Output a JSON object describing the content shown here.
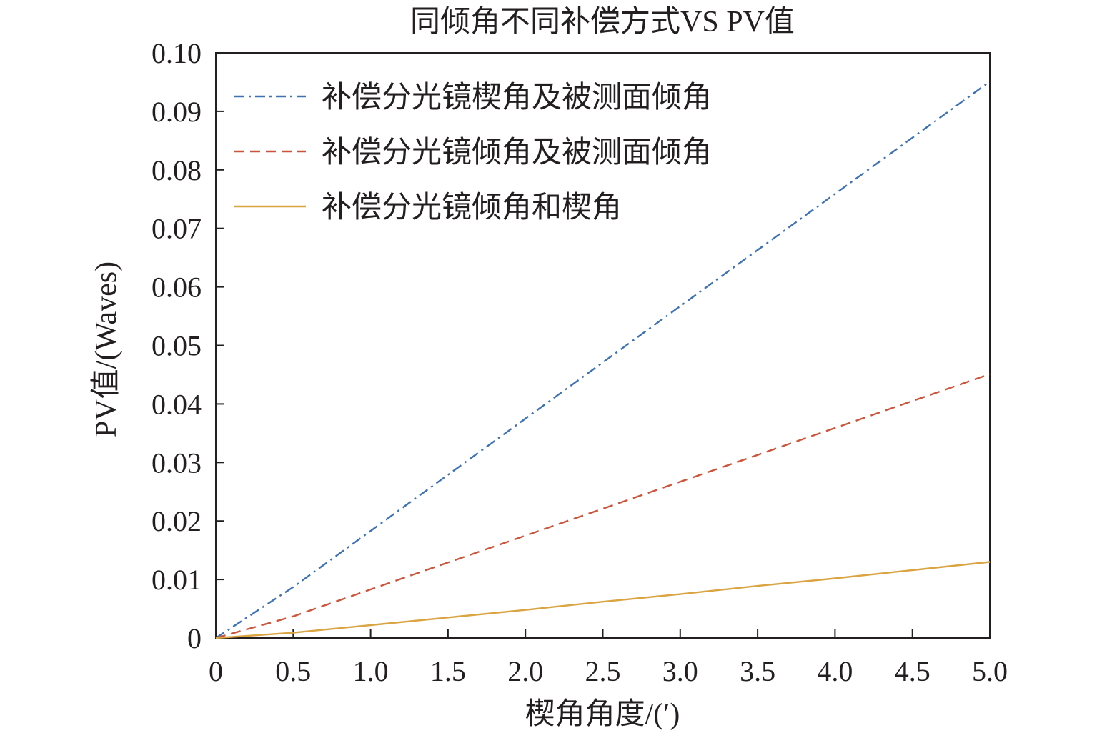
{
  "chart_data": {
    "type": "line",
    "title": "同倾角不同补偿方式VS PV值",
    "xlabel": "楔角角度/(′)",
    "ylabel": "PV值/(Waves)",
    "xlim": [
      0,
      5.0
    ],
    "ylim": [
      0,
      0.1
    ],
    "x_ticks": [
      0,
      0.5,
      1.0,
      1.5,
      2.0,
      2.5,
      3.0,
      3.5,
      4.0,
      4.5,
      5.0
    ],
    "x_tick_labels": [
      "0",
      "0.5",
      "1.0",
      "1.5",
      "2.0",
      "2.5",
      "3.0",
      "3.5",
      "4.0",
      "4.5",
      "5.0"
    ],
    "y_ticks": [
      0,
      0.01,
      0.02,
      0.03,
      0.04,
      0.05,
      0.06,
      0.07,
      0.08,
      0.09,
      0.1
    ],
    "y_tick_labels": [
      "0",
      "0.01",
      "0.02",
      "0.03",
      "0.04",
      "0.05",
      "0.06",
      "0.07",
      "0.08",
      "0.09",
      "0.10"
    ],
    "grid": false,
    "legend_position": "top-left",
    "series": [
      {
        "name": "补偿分光镜楔角及被测面倾角",
        "color": "#3f72af",
        "style": "dash-dot",
        "x": [
          0,
          0.5,
          1.0,
          1.5,
          2.0,
          2.5,
          3.0,
          3.5,
          4.0,
          4.5,
          5.0
        ],
        "values": [
          0,
          0.0087,
          0.0183,
          0.0279,
          0.0375,
          0.0471,
          0.0567,
          0.0663,
          0.0759,
          0.0855,
          0.0951
        ]
      },
      {
        "name": "补偿分光镜倾角及被测面倾角",
        "color": "#c9563c",
        "style": "dashed",
        "x": [
          0,
          0.5,
          1.0,
          1.5,
          2.0,
          2.5,
          3.0,
          3.5,
          4.0,
          4.5,
          5.0
        ],
        "values": [
          0,
          0.0037,
          0.0083,
          0.0129,
          0.0175,
          0.0221,
          0.0267,
          0.0313,
          0.0359,
          0.0405,
          0.0451
        ]
      },
      {
        "name": "补偿分光镜倾角和楔角",
        "color": "#d9a441",
        "style": "solid",
        "x": [
          0,
          0.5,
          1.0,
          1.5,
          2.0,
          2.5,
          3.0,
          3.5,
          4.0,
          4.5,
          5.0
        ],
        "values": [
          0,
          0.0009,
          0.0022,
          0.0035,
          0.0048,
          0.0062,
          0.0075,
          0.0089,
          0.0102,
          0.0116,
          0.013
        ]
      }
    ]
  }
}
